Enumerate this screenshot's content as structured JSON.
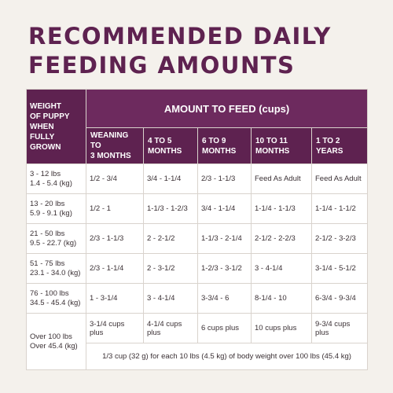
{
  "title_line1": "RECOMMENDED DAILY",
  "title_line2": "FEEDING AMOUNTS",
  "table": {
    "weight_header": [
      "WEIGHT",
      "OF PUPPY",
      "WHEN",
      "FULLY",
      "GROWN"
    ],
    "amount_header": "AMOUNT TO FEED (cups)",
    "columns": [
      [
        "WEANING TO",
        "3 MONTHS"
      ],
      [
        "4 TO 5",
        "MONTHS"
      ],
      [
        "6 TO 9",
        "MONTHS"
      ],
      [
        "10 TO 11",
        "MONTHS"
      ],
      [
        "1 TO 2",
        "YEARS"
      ]
    ],
    "rows": [
      {
        "weight": [
          "3 - 12 lbs",
          "1.4 - 5.4 (kg)"
        ],
        "values": [
          "1/2 - 3/4",
          "3/4 - 1-1/4",
          "2/3 - 1-1/3",
          "Feed As Adult",
          "Feed As Adult"
        ]
      },
      {
        "weight": [
          "13 - 20 lbs",
          "5.9 - 9.1 (kg)"
        ],
        "values": [
          "1/2 - 1",
          "1-1/3 - 1-2/3",
          "3/4 - 1-1/4",
          "1-1/4 - 1-1/3",
          "1-1/4 - 1-1/2"
        ]
      },
      {
        "weight": [
          "21 - 50 lbs",
          "9.5 - 22.7 (kg)"
        ],
        "values": [
          "2/3 - 1-1/3",
          "2 - 2-1/2",
          "1-1/3 - 2-1/4",
          "2-1/2 - 2-2/3",
          "2-1/2 - 3-2/3"
        ]
      },
      {
        "weight": [
          "51 - 75 lbs",
          "23.1 - 34.0 (kg)"
        ],
        "values": [
          "2/3 - 1-1/4",
          "2 - 3-1/2",
          "1-2/3 - 3-1/2",
          "3 - 4-1/4",
          "3-1/4 - 5-1/2"
        ]
      },
      {
        "weight": [
          "76 - 100 lbs",
          "34.5 - 45.4 (kg)"
        ],
        "values": [
          "1 - 3-1/4",
          "3 - 4-1/4",
          "3-3/4 - 6",
          "8-1/4 - 10",
          "6-3/4 - 9-3/4"
        ]
      },
      {
        "weight": [
          "Over 100 lbs",
          "Over 45.4 (kg)"
        ],
        "values": [
          "3-1/4 cups plus",
          "4-1/4 cups plus",
          "6 cups plus",
          "10 cups plus",
          "9-3/4 cups plus"
        ]
      }
    ],
    "footnote": "1/3 cup (32 g) for each 10 lbs (4.5 kg) of body weight over 100 lbs (45.4 kg)"
  },
  "colors": {
    "brand_plum": "#5e2250",
    "header_plum": "#6d2a5e",
    "background": "#f4f1ec"
  }
}
